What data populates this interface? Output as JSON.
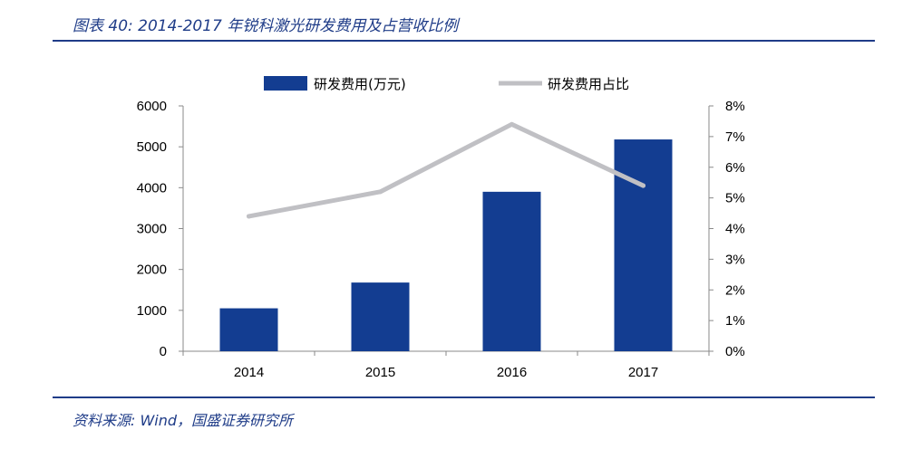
{
  "caption": "图表 40: 2014-2017 年锐科激光研发费用及占营收比例",
  "source": "资料来源: Wind，国盛证券研究所",
  "colors": {
    "accent": "#1f3c88",
    "bar": "#133d91",
    "line": "#c0c0c4"
  },
  "chart_data": {
    "type": "bar",
    "title": "",
    "categories": [
      "2014",
      "2015",
      "2016",
      "2017"
    ],
    "series": [
      {
        "name": "研发费用(万元)",
        "kind": "bar",
        "axis": "left",
        "values": [
          1050,
          1680,
          3900,
          5180
        ]
      },
      {
        "name": "研发费用占比",
        "kind": "line",
        "axis": "right",
        "values": [
          4.4,
          5.2,
          7.4,
          5.4
        ]
      }
    ],
    "y_left": {
      "ticks": [
        "0",
        "1000",
        "2000",
        "3000",
        "4000",
        "5000",
        "6000"
      ],
      "lim": [
        0,
        6000
      ]
    },
    "y_right": {
      "ticks": [
        "0%",
        "1%",
        "2%",
        "3%",
        "4%",
        "5%",
        "6%",
        "7%",
        "8%"
      ],
      "lim": [
        0,
        8
      ]
    },
    "legend": "top",
    "grid": false
  }
}
